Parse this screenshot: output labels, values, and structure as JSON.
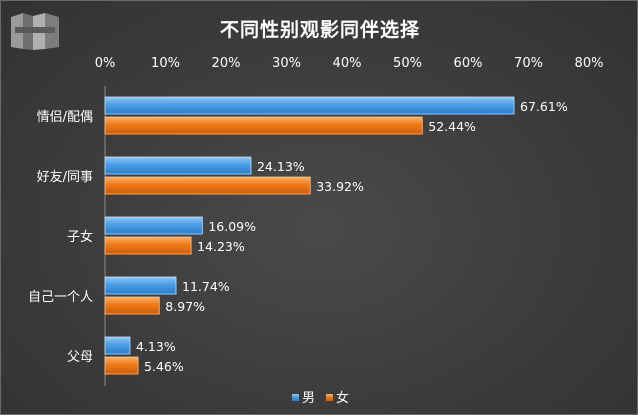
{
  "chart_data": {
    "type": "bar",
    "orientation": "horizontal",
    "title": "不同性别观影同伴选择",
    "categories": [
      "情侣/配偶",
      "好友/同事",
      "子女",
      "自己一个人",
      "父母"
    ],
    "series": [
      {
        "name": "男",
        "values": [
          67.61,
          24.13,
          16.09,
          11.74,
          4.13
        ],
        "labels": [
          "67.61%",
          "24.13%",
          "16.09%",
          "11.74%",
          "4.13%"
        ],
        "color": "#4a9ee6"
      },
      {
        "name": "女",
        "values": [
          52.44,
          33.92,
          14.23,
          8.97,
          5.46
        ],
        "labels": [
          "52.44%",
          "33.92%",
          "14.23%",
          "8.97%",
          "5.46%"
        ],
        "color": "#f07a1a"
      }
    ],
    "xlim": [
      0,
      80
    ],
    "x_ticks": [
      "0%",
      "10%",
      "20%",
      "30%",
      "40%",
      "50%",
      "60%",
      "70%",
      "80%"
    ],
    "x_axis_position": "top",
    "grid": false,
    "legend_position": "bottom"
  }
}
